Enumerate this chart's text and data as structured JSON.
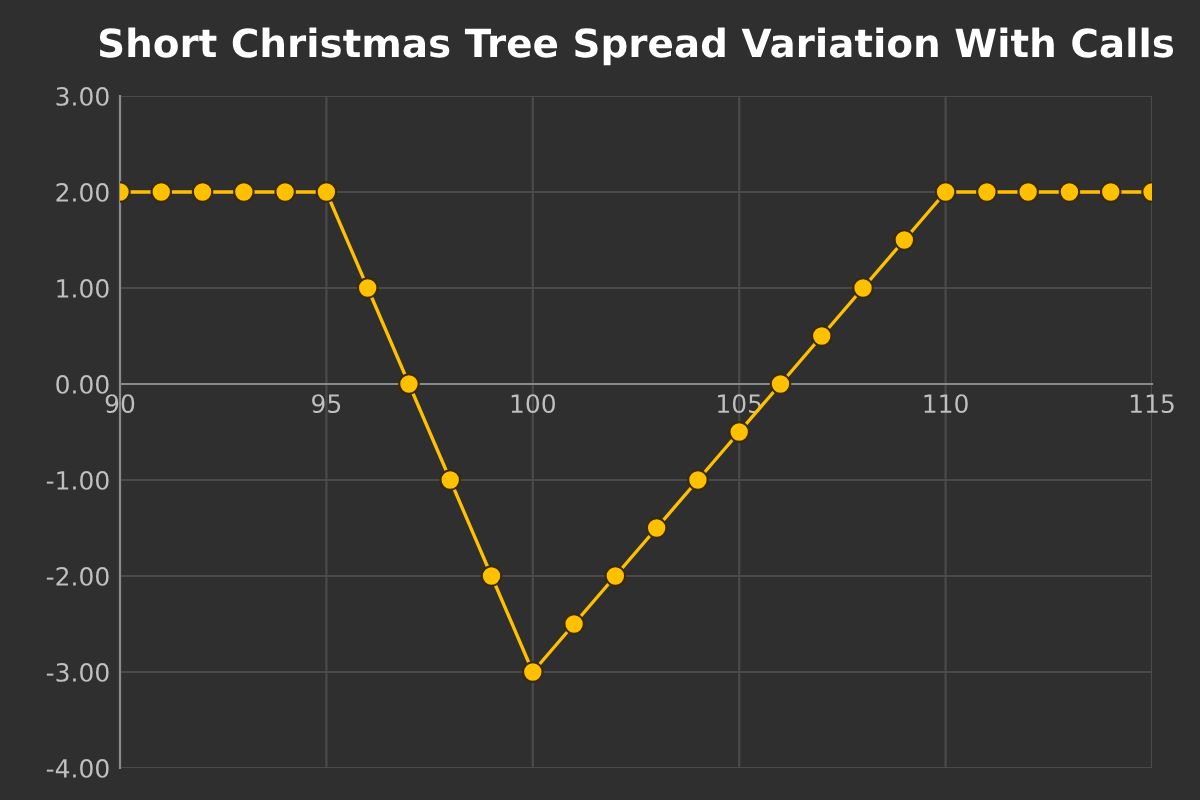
{
  "chart_data": {
    "type": "line",
    "title": "Short Christmas Tree Spread Variation With Calls",
    "x": [
      90,
      91,
      92,
      93,
      94,
      95,
      96,
      97,
      98,
      99,
      100,
      101,
      102,
      103,
      104,
      105,
      106,
      107,
      108,
      109,
      110,
      111,
      112,
      113,
      114,
      115
    ],
    "series": [
      {
        "color": "#ffc000",
        "values": [
          2,
          2,
          2,
          2,
          2,
          2,
          1,
          0,
          -1,
          -2,
          -3,
          -2.5,
          -2,
          -1.5,
          -1,
          -0.5,
          0,
          0.5,
          1,
          1.5,
          2,
          2,
          2,
          2,
          2,
          2
        ]
      }
    ],
    "xlim": [
      90,
      115
    ],
    "xticks": [
      90,
      95,
      100,
      105,
      110,
      115
    ],
    "ylim": [
      -4,
      3
    ],
    "yticks": [
      {
        "value": -4,
        "label": "-4.00"
      },
      {
        "value": -3,
        "label": "-3.00"
      },
      {
        "value": -2,
        "label": "-2.00"
      },
      {
        "value": -1,
        "label": "-1.00"
      },
      {
        "value": 0,
        "label": "0.00"
      },
      {
        "value": 1,
        "label": "1.00"
      },
      {
        "value": 2,
        "label": "2.00"
      },
      {
        "value": 3,
        "label": "3.00"
      }
    ],
    "grid": true,
    "marker": "circle",
    "line_style": "solid"
  }
}
